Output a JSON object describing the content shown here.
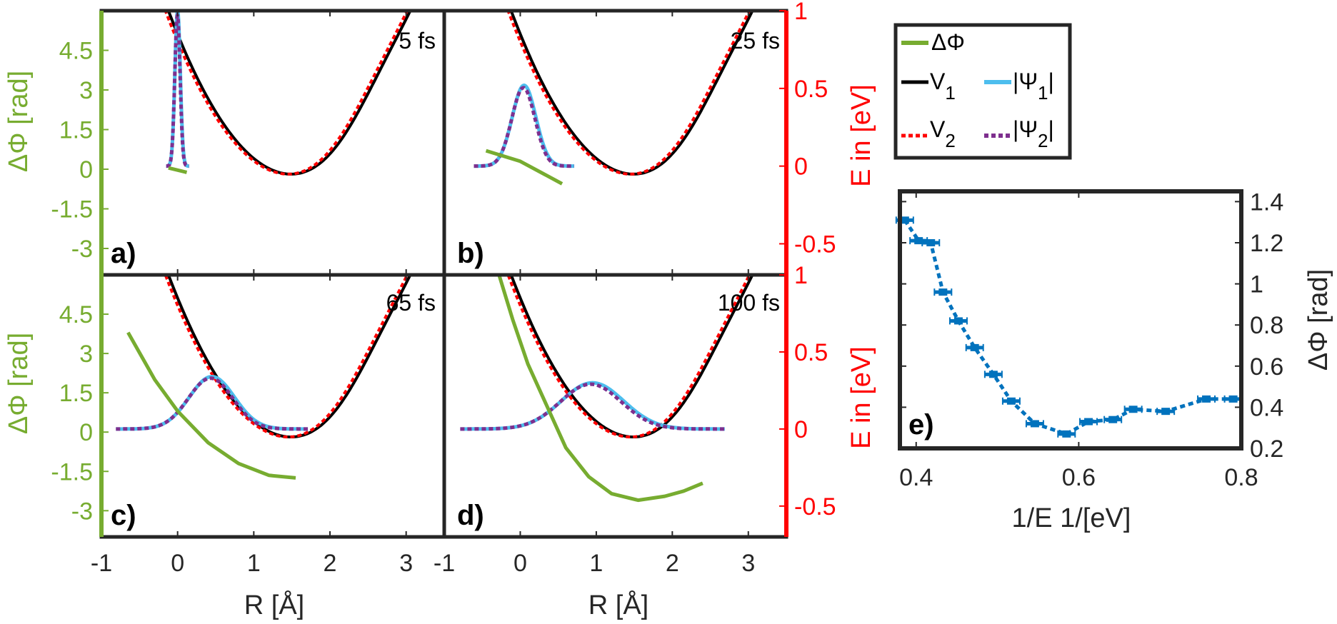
{
  "colors": {
    "phase": "#77ac30",
    "energy_axis": "#ff0000",
    "v1": "#000000",
    "v2": "#ff0000",
    "psi1": "#4dbeee",
    "psi2": "#7e2f8e",
    "scatter": "#0072bd",
    "frame": "#262626"
  },
  "axes_text": {
    "x_label": "R [Å]",
    "phase_label": "ΔΦ [rad]",
    "energy_label": "E in [eV]",
    "x_ticks": [
      "-1",
      "0",
      "1",
      "2",
      "3"
    ],
    "phase_ticks": [
      "4.5",
      "3",
      "1.5",
      "0",
      "-1.5",
      "-3"
    ],
    "energy_ticks": [
      "1",
      "0.5",
      "0",
      "-0.5"
    ]
  },
  "legend": {
    "phase": "ΔΦ",
    "v1_base": "V",
    "v1_sub": "1",
    "v2_base": "V",
    "v2_sub": "2",
    "psi1_base": "|Ψ",
    "psi1_sub": "1",
    "psi1_end": "|",
    "psi2_base": "|Ψ",
    "psi2_sub": "2",
    "psi2_end": "|"
  },
  "panels": [
    {
      "letter": "a)",
      "time": "5 fs"
    },
    {
      "letter": "b)",
      "time": "25 fs"
    },
    {
      "letter": "c)",
      "time": "65 fs"
    },
    {
      "letter": "d)",
      "time": "100 fs"
    }
  ],
  "panel_e": {
    "letter": "e)",
    "x_label": "1/E 1/[eV]",
    "y_label": "ΔΦ [rad]",
    "x_ticks": [
      "0.4",
      "0.6",
      "0.8"
    ],
    "y_ticks": [
      "1.4",
      "1.2",
      "1",
      "0.8",
      "0.6",
      "0.4",
      "0.2"
    ]
  },
  "chart_data": [
    {
      "type": "line",
      "panel": "a",
      "xlim": [
        -1,
        3.5
      ],
      "ylim_phase": [
        -4,
        6
      ],
      "ylim_energy": [
        -0.7,
        1
      ],
      "wavepacket": {
        "center": 0.0,
        "width": 0.05,
        "peak_energy": 1.0
      },
      "phase": {
        "x": [
          -0.12,
          0.12
        ],
        "y": [
          0.05,
          -0.12
        ]
      }
    },
    {
      "type": "line",
      "panel": "b",
      "xlim": [
        -1,
        3.5
      ],
      "ylim_phase": [
        -4,
        6
      ],
      "ylim_energy": [
        -0.7,
        1
      ],
      "wavepacket": {
        "center": 0.05,
        "width": 0.22,
        "peak_energy": 0.52
      },
      "phase": {
        "x": [
          -0.45,
          0.0,
          0.55
        ],
        "y": [
          0.7,
          0.3,
          -0.55
        ]
      }
    },
    {
      "type": "line",
      "panel": "c",
      "xlim": [
        -1,
        3.5
      ],
      "ylim_phase": [
        -4,
        6
      ],
      "ylim_energy": [
        -0.7,
        1
      ],
      "wavepacket": {
        "center": 0.45,
        "width": 0.42,
        "peak_energy": 0.34
      },
      "phase": {
        "x": [
          -0.65,
          -0.3,
          0.0,
          0.4,
          0.8,
          1.2,
          1.55
        ],
        "y": [
          3.8,
          2.0,
          0.8,
          -0.4,
          -1.2,
          -1.65,
          -1.75
        ]
      }
    },
    {
      "type": "line",
      "panel": "d",
      "xlim": [
        -1,
        3.5
      ],
      "ylim_phase": [
        -4,
        6
      ],
      "ylim_energy": [
        -0.7,
        1
      ],
      "wavepacket": {
        "center": 0.95,
        "width": 0.58,
        "peak_energy": 0.3
      },
      "phase": {
        "x": [
          -0.3,
          -0.1,
          0.1,
          0.35,
          0.6,
          0.9,
          1.2,
          1.55,
          1.9,
          2.15,
          2.4
        ],
        "y": [
          6.2,
          4.3,
          2.6,
          1.0,
          -0.6,
          -1.7,
          -2.35,
          -2.6,
          -2.45,
          -2.25,
          -1.95
        ]
      }
    },
    {
      "type": "scatter",
      "panel": "e",
      "xlim": [
        0.38,
        0.8
      ],
      "ylim": [
        0.2,
        1.45
      ],
      "x": [
        0.386,
        0.403,
        0.418,
        0.433,
        0.452,
        0.472,
        0.495,
        0.517,
        0.546,
        0.585,
        0.612,
        0.642,
        0.667,
        0.707,
        0.757,
        0.79
      ],
      "y": [
        1.31,
        1.21,
        1.2,
        0.96,
        0.82,
        0.69,
        0.56,
        0.43,
        0.32,
        0.27,
        0.33,
        0.34,
        0.39,
        0.38,
        0.44,
        0.44
      ]
    }
  ]
}
